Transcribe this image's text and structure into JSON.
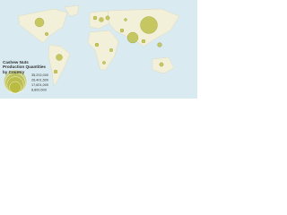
{
  "title": "Cashew Nuts Production Quantities by Country",
  "legend": {
    "color": "#b8ba3a",
    "items": [
      {
        "value": 35202000,
        "label": "35,202,000"
      },
      {
        "value": 26401500,
        "label": "26,401,500"
      },
      {
        "value": 17601000,
        "label": "17,601,000"
      },
      {
        "value": 8800500,
        "label": "8,800,500"
      }
    ]
  }
}
